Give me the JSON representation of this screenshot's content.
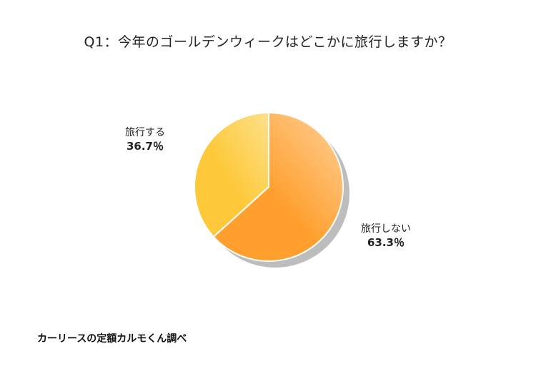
{
  "chart_data": {
    "type": "pie",
    "title": "Q1：今年のゴールデンウィークはどこかに旅行しますか？",
    "slices": [
      {
        "label": "旅行しない",
        "value": 63.3,
        "value_label": "63.3％",
        "color": "#ff9f2e",
        "color_light": "#ffd199"
      },
      {
        "label": "旅行する",
        "value": 36.7,
        "value_label": "36.7％",
        "color": "#fdc93a",
        "color_light": "#fde08a"
      }
    ]
  },
  "source": "カーリースの定額カルモくん調べ"
}
